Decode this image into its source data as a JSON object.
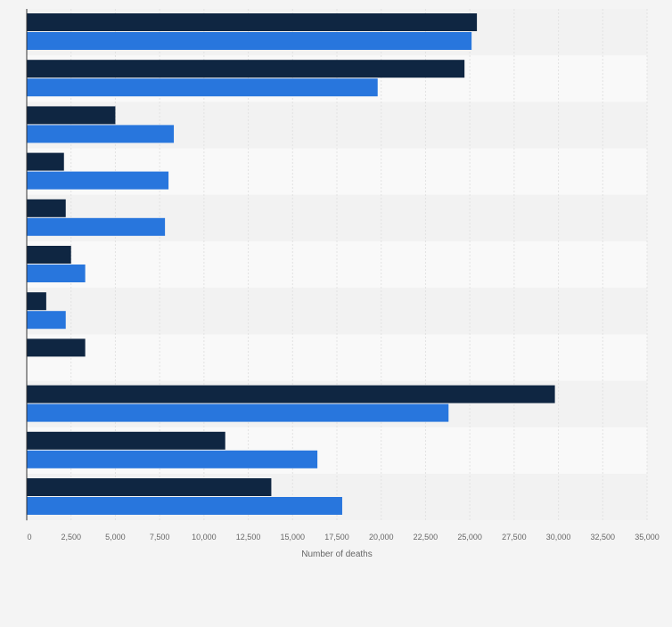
{
  "chart_data": {
    "type": "bar",
    "orientation": "horizontal",
    "title": "",
    "xlabel": "Number of deaths",
    "ylabel": "",
    "xlim": [
      0,
      35000
    ],
    "xticks": [
      0,
      2500,
      5000,
      7500,
      10000,
      12500,
      15000,
      17500,
      20000,
      22500,
      25000,
      27500,
      30000,
      32500,
      35000
    ],
    "xtick_labels": [
      "0",
      "2,500",
      "5,000",
      "7,500",
      "10,000",
      "12,500",
      "15,000",
      "17,500",
      "20,000",
      "22,500",
      "25,000",
      "27,500",
      "30,000",
      "32,500",
      "35,000"
    ],
    "grid": true,
    "legend": "none",
    "category_count": 11,
    "series": [
      {
        "name": "series-1",
        "color": "#0f2642",
        "values": [
          25400,
          24700,
          5000,
          2100,
          2200,
          2500,
          1100,
          3300,
          29800,
          11200,
          13800
        ]
      },
      {
        "name": "series-2",
        "color": "#2876dd",
        "values": [
          25100,
          19800,
          8300,
          8000,
          7800,
          3300,
          2200,
          null,
          23800,
          16400,
          17800
        ]
      }
    ]
  },
  "colors": {
    "background": "#f4f4f4",
    "plot_band_light": "#f9f9f9",
    "plot_band_dark": "#f2f2f2",
    "grid": "#e2e2e2",
    "axis": "#333333",
    "tick_text": "#666666"
  }
}
